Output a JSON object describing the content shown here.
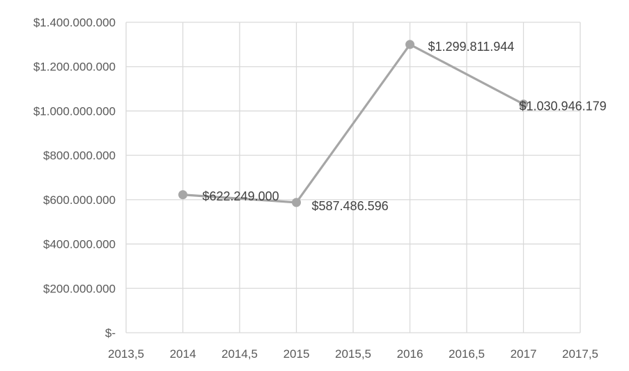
{
  "chart_data": {
    "type": "scatter",
    "title": "",
    "xlabel": "",
    "ylabel": "",
    "xlim": [
      2013.5,
      2017.5
    ],
    "ylim": [
      0,
      1400000000
    ],
    "grid": true,
    "x_ticks": [
      {
        "value": 2013.5,
        "label": "2013,5"
      },
      {
        "value": 2014,
        "label": "2014"
      },
      {
        "value": 2014.5,
        "label": "2014,5"
      },
      {
        "value": 2015,
        "label": "2015"
      },
      {
        "value": 2015.5,
        "label": "2015,5"
      },
      {
        "value": 2016,
        "label": "2016"
      },
      {
        "value": 2016.5,
        "label": "2016,5"
      },
      {
        "value": 2017,
        "label": "2017"
      },
      {
        "value": 2017.5,
        "label": "2017,5"
      }
    ],
    "y_ticks": [
      {
        "value": 0,
        "label": "$-"
      },
      {
        "value": 200000000,
        "label": "$200.000.000"
      },
      {
        "value": 400000000,
        "label": "$400.000.000"
      },
      {
        "value": 600000000,
        "label": "$600.000.000"
      },
      {
        "value": 800000000,
        "label": "$800.000.000"
      },
      {
        "value": 1000000000,
        "label": "$1.000.000.000"
      },
      {
        "value": 1200000000,
        "label": "$1.200.000.000"
      },
      {
        "value": 1400000000,
        "label": "$1.400.000.000"
      }
    ],
    "series": [
      {
        "color": "#a6a6a6",
        "points": [
          {
            "x": 2014,
            "y": 622249000,
            "label": "$622.249.000"
          },
          {
            "x": 2015,
            "y": 587486596,
            "label": "$587.486.596"
          },
          {
            "x": 2016,
            "y": 1299811944,
            "label": "$1.299.811.944"
          },
          {
            "x": 2017,
            "y": 1030946179,
            "label": "$1.030.946.179"
          }
        ]
      }
    ]
  }
}
